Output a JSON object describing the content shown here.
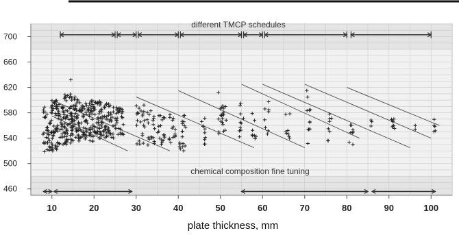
{
  "chart_data": {
    "type": "scatter",
    "title": "",
    "xlabel": "plate thickness, mm",
    "ylabel": "",
    "xlim": [
      5,
      105
    ],
    "ylim": [
      450,
      720
    ],
    "x_ticks": [
      10,
      20,
      30,
      40,
      50,
      60,
      70,
      80,
      90,
      100
    ],
    "y_ticks": [
      460,
      500,
      540,
      580,
      620,
      660,
      700
    ],
    "grid": true,
    "annotations": {
      "top_band": "different TMCP schedules",
      "bottom_band": "chemical composition fine tuning"
    },
    "top_ranges": [
      [
        12,
        25
      ],
      [
        25.5,
        30
      ],
      [
        30.5,
        40
      ],
      [
        40.5,
        55
      ],
      [
        55.5,
        60
      ],
      [
        60.5,
        80
      ],
      [
        81,
        100
      ]
    ],
    "bottom_ranges": [
      [
        8,
        10
      ],
      [
        10.5,
        29
      ],
      [
        55,
        85
      ],
      [
        86,
        101
      ]
    ],
    "trend_lines": [
      {
        "x": [
          10,
          28
        ],
        "y": [
          575,
          520
        ]
      },
      {
        "x": [
          10,
          38
        ],
        "y": [
          600,
          520
        ]
      },
      {
        "x": [
          30,
          58
        ],
        "y": [
          605,
          525
        ]
      },
      {
        "x": [
          40,
          70
        ],
        "y": [
          615,
          525
        ]
      },
      {
        "x": [
          55,
          83
        ],
        "y": [
          625,
          540
        ]
      },
      {
        "x": [
          60,
          95
        ],
        "y": [
          625,
          525
        ]
      },
      {
        "x": [
          70,
          100
        ],
        "y": [
          625,
          540
        ]
      },
      {
        "x": [
          80,
          102
        ],
        "y": [
          620,
          560
        ]
      }
    ],
    "clusters": [
      {
        "x": 9,
        "y_min": 515,
        "y_max": 590,
        "n": 40,
        "x_spread": 1.2
      },
      {
        "x": 11,
        "y_min": 520,
        "y_max": 600,
        "n": 60,
        "x_spread": 1.2
      },
      {
        "x": 13.5,
        "y_min": 530,
        "y_max": 610,
        "n": 70,
        "x_spread": 1.3
      },
      {
        "x": 16,
        "y_min": 535,
        "y_max": 605,
        "n": 70,
        "x_spread": 1.3
      },
      {
        "x": 18.5,
        "y_min": 535,
        "y_max": 600,
        "n": 60,
        "x_spread": 1.3
      },
      {
        "x": 21,
        "y_min": 540,
        "y_max": 600,
        "n": 55,
        "x_spread": 1.3
      },
      {
        "x": 23.5,
        "y_min": 540,
        "y_max": 595,
        "n": 45,
        "x_spread": 1.2
      },
      {
        "x": 26,
        "y_min": 545,
        "y_max": 590,
        "n": 30,
        "x_spread": 1
      },
      {
        "x": 31,
        "y_min": 530,
        "y_max": 595,
        "n": 22,
        "x_spread": 1
      },
      {
        "x": 33.5,
        "y_min": 525,
        "y_max": 590,
        "n": 18,
        "x_spread": 0.9
      },
      {
        "x": 36,
        "y_min": 530,
        "y_max": 585,
        "n": 18,
        "x_spread": 0.9
      },
      {
        "x": 38.5,
        "y_min": 530,
        "y_max": 580,
        "n": 14,
        "x_spread": 0.8
      },
      {
        "x": 41,
        "y_min": 520,
        "y_max": 580,
        "n": 18,
        "x_spread": 0.8
      },
      {
        "x": 46,
        "y_min": 530,
        "y_max": 575,
        "n": 10,
        "x_spread": 0.5
      },
      {
        "x": 50,
        "y_min": 535,
        "y_max": 590,
        "n": 10,
        "x_spread": 0.5
      },
      {
        "x": 51,
        "y_min": 545,
        "y_max": 600,
        "n": 10,
        "x_spread": 0.5
      },
      {
        "x": 55,
        "y_min": 540,
        "y_max": 600,
        "n": 10,
        "x_spread": 0.5
      },
      {
        "x": 58,
        "y_min": 535,
        "y_max": 585,
        "n": 8,
        "x_spread": 0.5
      },
      {
        "x": 61,
        "y_min": 540,
        "y_max": 600,
        "n": 8,
        "x_spread": 0.5
      },
      {
        "x": 66,
        "y_min": 540,
        "y_max": 585,
        "n": 8,
        "x_spread": 0.5
      },
      {
        "x": 71,
        "y_min": 530,
        "y_max": 610,
        "n": 10,
        "x_spread": 0.5
      },
      {
        "x": 76,
        "y_min": 535,
        "y_max": 580,
        "n": 8,
        "x_spread": 0.5
      },
      {
        "x": 81,
        "y_min": 530,
        "y_max": 590,
        "n": 8,
        "x_spread": 0.5
      },
      {
        "x": 86,
        "y_min": 555,
        "y_max": 570,
        "n": 3,
        "x_spread": 0.5
      },
      {
        "x": 91,
        "y_min": 550,
        "y_max": 590,
        "n": 8,
        "x_spread": 0.5
      },
      {
        "x": 96,
        "y_min": 550,
        "y_max": 560,
        "n": 2,
        "x_spread": 0.4
      },
      {
        "x": 101,
        "y_min": 540,
        "y_max": 570,
        "n": 5,
        "x_spread": 0.4
      }
    ],
    "outliers": [
      {
        "x": 14.5,
        "y": 632
      },
      {
        "x": 49.5,
        "y": 612
      },
      {
        "x": 70.5,
        "y": 615
      }
    ]
  }
}
